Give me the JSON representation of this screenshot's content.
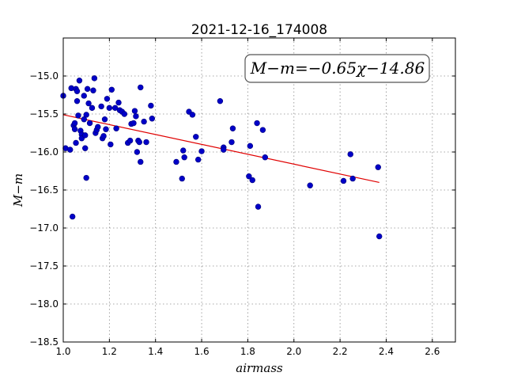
{
  "chart_data": {
    "type": "scatter",
    "title": "2021-12-16_174008",
    "xlabel": "airmass",
    "ylabel": "M−m",
    "xlim": [
      1.0,
      2.7
    ],
    "ylim": [
      -18.5,
      -14.5
    ],
    "grid": true,
    "xticks": [
      1.0,
      1.2,
      1.4,
      1.6,
      1.8,
      2.0,
      2.2,
      2.4,
      2.6
    ],
    "xtick_labels": [
      "1.0",
      "1.2",
      "1.4",
      "1.6",
      "1.8",
      "2.0",
      "2.2",
      "2.4",
      "2.6"
    ],
    "yticks": [
      -15.0,
      -15.5,
      -16.0,
      -16.5,
      -17.0,
      -17.5,
      -18.0,
      -18.5
    ],
    "ytick_labels": [
      "−15.0",
      "−15.5",
      "−16.0",
      "−16.5",
      "−17.0",
      "−17.5",
      "−18.0",
      "−18.5"
    ],
    "annotation": "M−m=−0.65χ−14.86",
    "fit": {
      "slope": -0.65,
      "intercept": -14.86,
      "x_range": [
        1.0,
        2.37
      ]
    },
    "series": [
      {
        "color": "#0000c8",
        "points": [
          [
            1.0,
            -15.26
          ],
          [
            1.01,
            -15.95
          ],
          [
            1.03,
            -15.97
          ],
          [
            1.035,
            -15.16
          ],
          [
            1.04,
            -16.85
          ],
          [
            1.045,
            -15.65
          ],
          [
            1.05,
            -15.7
          ],
          [
            1.05,
            -15.62
          ],
          [
            1.055,
            -15.17
          ],
          [
            1.055,
            -15.88
          ],
          [
            1.06,
            -15.33
          ],
          [
            1.06,
            -15.2
          ],
          [
            1.065,
            -15.52
          ],
          [
            1.07,
            -15.06
          ],
          [
            1.075,
            -15.72
          ],
          [
            1.08,
            -15.77
          ],
          [
            1.08,
            -15.82
          ],
          [
            1.09,
            -15.26
          ],
          [
            1.09,
            -15.57
          ],
          [
            1.095,
            -15.78
          ],
          [
            1.095,
            -15.95
          ],
          [
            1.1,
            -16.34
          ],
          [
            1.1,
            -15.51
          ],
          [
            1.105,
            -15.17
          ],
          [
            1.11,
            -15.36
          ],
          [
            1.115,
            -15.62
          ],
          [
            1.125,
            -15.42
          ],
          [
            1.13,
            -15.19
          ],
          [
            1.135,
            -15.03
          ],
          [
            1.14,
            -15.75
          ],
          [
            1.145,
            -15.71
          ],
          [
            1.15,
            -15.67
          ],
          [
            1.165,
            -15.4
          ],
          [
            1.17,
            -15.82
          ],
          [
            1.175,
            -15.79
          ],
          [
            1.18,
            -15.57
          ],
          [
            1.185,
            -15.7
          ],
          [
            1.19,
            -15.3
          ],
          [
            1.2,
            -15.42
          ],
          [
            1.205,
            -15.9
          ],
          [
            1.21,
            -15.18
          ],
          [
            1.225,
            -15.42
          ],
          [
            1.23,
            -15.69
          ],
          [
            1.24,
            -15.35
          ],
          [
            1.245,
            -15.45
          ],
          [
            1.255,
            -15.47
          ],
          [
            1.265,
            -15.5
          ],
          [
            1.28,
            -15.88
          ],
          [
            1.29,
            -15.85
          ],
          [
            1.295,
            -15.63
          ],
          [
            1.305,
            -15.62
          ],
          [
            1.31,
            -15.46
          ],
          [
            1.315,
            -15.53
          ],
          [
            1.32,
            -16.0
          ],
          [
            1.325,
            -15.85
          ],
          [
            1.33,
            -15.87
          ],
          [
            1.335,
            -15.15
          ],
          [
            1.335,
            -16.13
          ],
          [
            1.35,
            -15.6
          ],
          [
            1.36,
            -15.87
          ],
          [
            1.38,
            -15.39
          ],
          [
            1.385,
            -15.56
          ],
          [
            1.49,
            -16.13
          ],
          [
            1.515,
            -16.35
          ],
          [
            1.52,
            -15.98
          ],
          [
            1.525,
            -16.07
          ],
          [
            1.545,
            -15.47
          ],
          [
            1.56,
            -15.51
          ],
          [
            1.575,
            -15.8
          ],
          [
            1.585,
            -16.1
          ],
          [
            1.6,
            -15.99
          ],
          [
            1.68,
            -15.33
          ],
          [
            1.695,
            -15.94
          ],
          [
            1.695,
            -15.97
          ],
          [
            1.73,
            -15.87
          ],
          [
            1.735,
            -15.69
          ],
          [
            1.805,
            -16.32
          ],
          [
            1.81,
            -15.92
          ],
          [
            1.82,
            -16.37
          ],
          [
            1.84,
            -15.62
          ],
          [
            1.845,
            -16.72
          ],
          [
            1.865,
            -15.71
          ],
          [
            1.875,
            -16.07
          ],
          [
            2.07,
            -16.44
          ],
          [
            2.215,
            -16.38
          ],
          [
            2.245,
            -16.03
          ],
          [
            2.255,
            -16.35
          ],
          [
            2.365,
            -16.2
          ],
          [
            2.37,
            -17.11
          ]
        ]
      }
    ]
  }
}
